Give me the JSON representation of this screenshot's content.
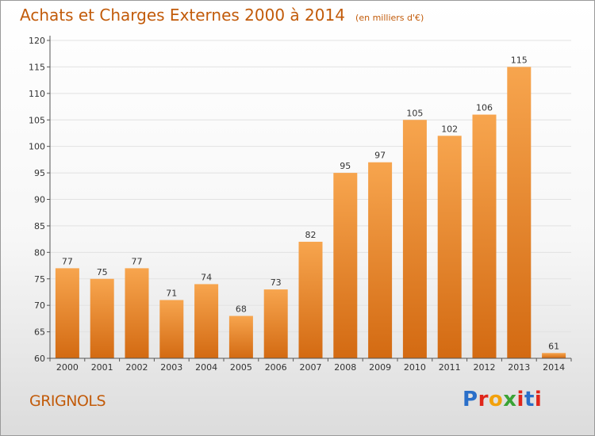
{
  "title": "Achats et Charges Externes 2000 à 2014",
  "unit_note": "(en milliers d'€)",
  "town": "GRIGNOLS",
  "logo": {
    "text": "Proxiti",
    "letter_colors": [
      "#2a6fc9",
      "#e0261b",
      "#f2a10c",
      "#3aa335",
      "#e0261b",
      "#2a6fc9",
      "#e0261b"
    ]
  },
  "colors": {
    "bar_top": "#f7a54e",
    "bar_bottom": "#d36a12",
    "axis": "#555555",
    "grid": "#e2e2e2"
  },
  "chart_data": {
    "type": "bar",
    "categories": [
      "2000",
      "2001",
      "2002",
      "2003",
      "2004",
      "2005",
      "2006",
      "2007",
      "2008",
      "2009",
      "2010",
      "2011",
      "2012",
      "2013",
      "2014"
    ],
    "values": [
      77,
      75,
      77,
      71,
      74,
      68,
      73,
      82,
      95,
      97,
      105,
      102,
      106,
      115,
      61
    ],
    "ylim": [
      60,
      120
    ],
    "yticks": [
      60,
      65,
      70,
      75,
      80,
      85,
      90,
      95,
      100,
      105,
      110,
      115,
      120
    ],
    "grid": true
  }
}
